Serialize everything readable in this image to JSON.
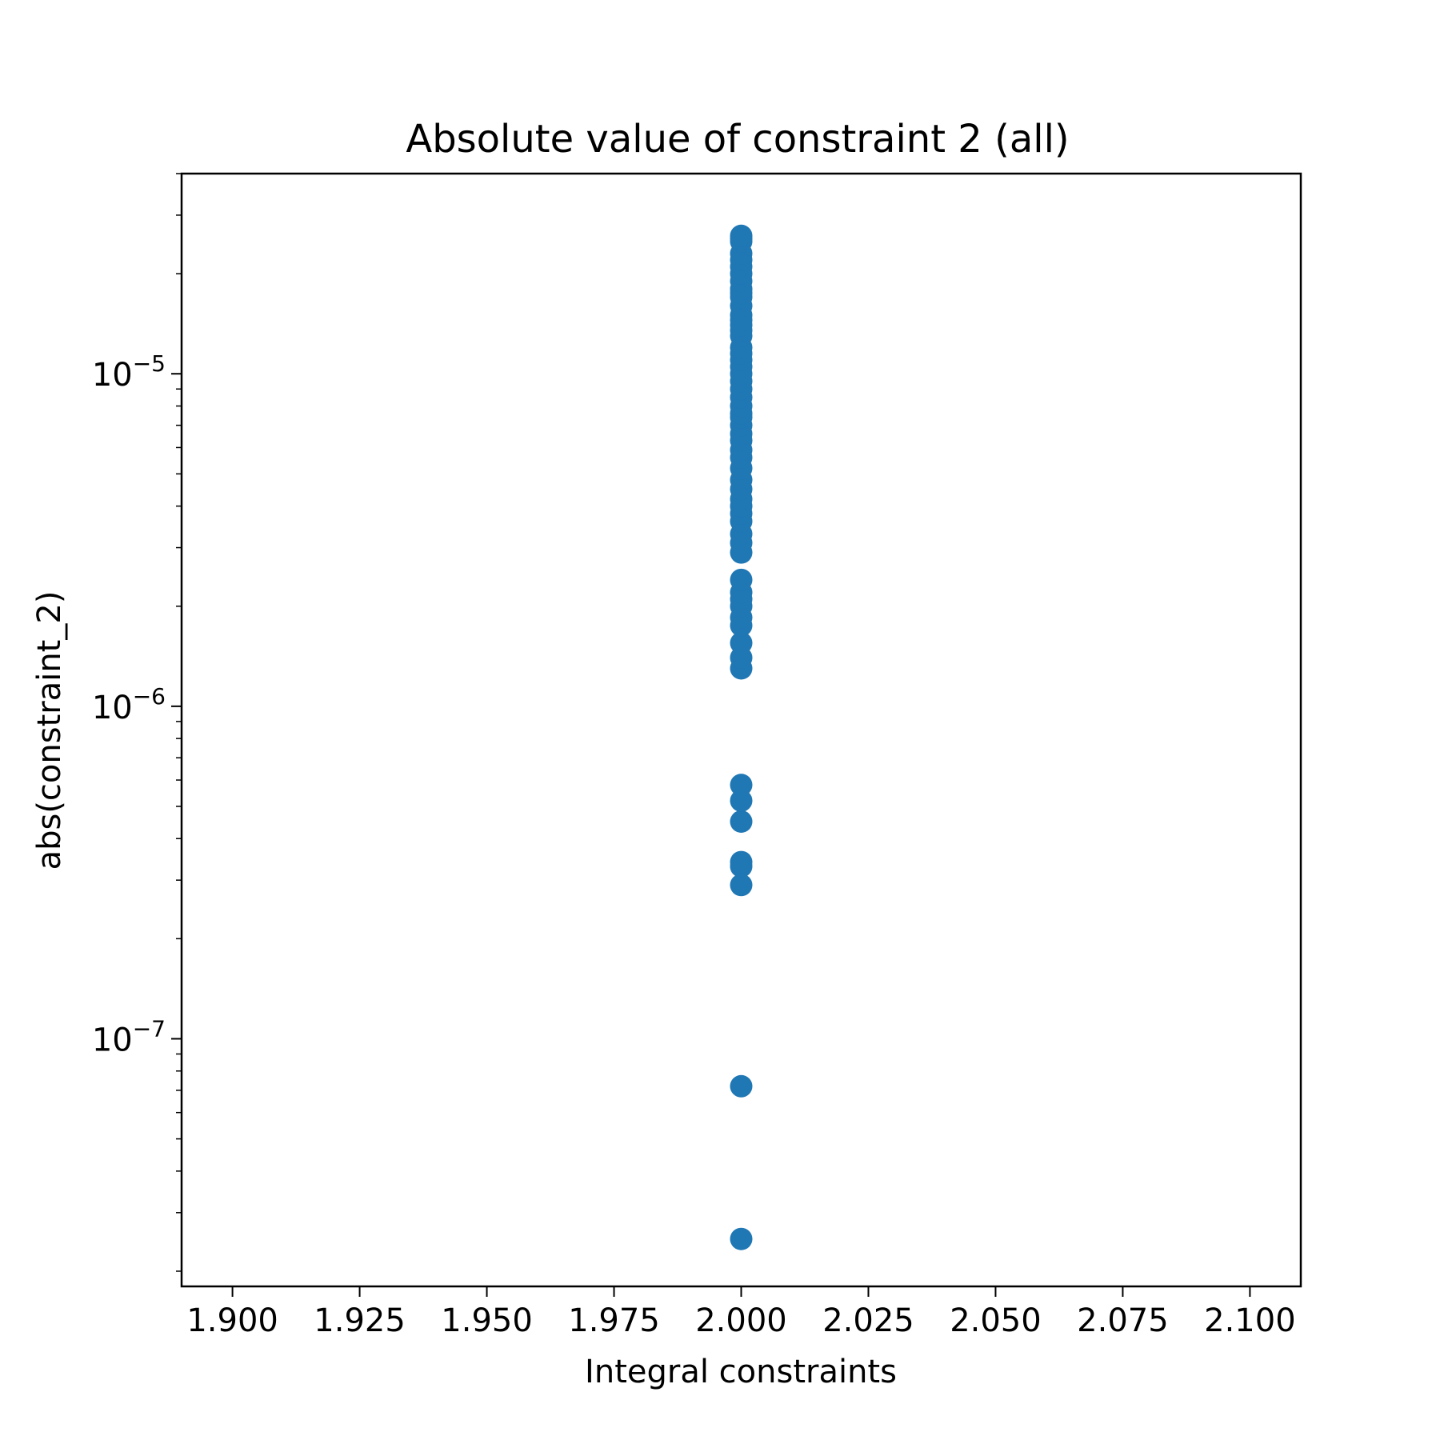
{
  "chart_data": {
    "type": "scatter",
    "title": "Absolute value of constraint 2 (all)",
    "xlabel": "Integral constraints",
    "ylabel": "abs(constraint_2)",
    "xscale": "linear",
    "yscale": "log",
    "xlim": [
      1.89,
      2.11
    ],
    "ylim": [
      1.8e-08,
      4e-05
    ],
    "x_ticks": [
      1.9,
      1.925,
      1.95,
      1.975,
      2.0,
      2.025,
      2.05,
      2.075,
      2.1
    ],
    "x_tick_labels": [
      "1.900",
      "1.925",
      "1.950",
      "1.975",
      "2.000",
      "2.025",
      "2.050",
      "2.075",
      "2.100"
    ],
    "y_ticks": [
      {
        "value": 1e-07,
        "base": "10",
        "exponent": "−7"
      },
      {
        "value": 1e-06,
        "base": "10",
        "exponent": "−6"
      },
      {
        "value": 1e-05,
        "base": "10",
        "exponent": "−5"
      }
    ],
    "grid": false,
    "marker_color": "#1f77b4",
    "series": [
      {
        "x": [
          2.0,
          2.0,
          2.0,
          2.0,
          2.0,
          2.0,
          2.0,
          2.0,
          2.0,
          2.0,
          2.0,
          2.0,
          2.0,
          2.0,
          2.0,
          2.0,
          2.0,
          2.0,
          2.0,
          2.0,
          2.0,
          2.0,
          2.0,
          2.0,
          2.0,
          2.0,
          2.0,
          2.0,
          2.0,
          2.0,
          2.0,
          2.0,
          2.0,
          2.0,
          2.0,
          2.0,
          2.0,
          2.0,
          2.0,
          2.0,
          2.0,
          2.0,
          2.0,
          2.0,
          2.0,
          2.0,
          2.0,
          2.0,
          2.0,
          2.0,
          2.0,
          2.0,
          2.0,
          2.0,
          2.0,
          2.0,
          2.0,
          2.0,
          2.0,
          2.0
        ],
        "y": [
          2.5e-08,
          7.2e-08,
          2.9e-07,
          3.3e-07,
          3.4e-07,
          4.5e-07,
          5.2e-07,
          5.8e-07,
          1.3e-06,
          1.4e-06,
          1.55e-06,
          1.75e-06,
          1.85e-06,
          2e-06,
          2.1e-06,
          2.2e-06,
          2.4e-06,
          2.9e-06,
          3.1e-06,
          3.3e-06,
          3.6e-06,
          3.8e-06,
          4e-06,
          4.2e-06,
          4.5e-06,
          4.8e-06,
          5.2e-06,
          5.6e-06,
          5.9e-06,
          6.3e-06,
          6.6e-06,
          7e-06,
          7.4e-06,
          7.6e-06,
          8e-06,
          8.5e-06,
          9e-06,
          9.5e-06,
          1e-05,
          1.05e-05,
          1.1e-05,
          1.15e-05,
          1.2e-05,
          1.3e-05,
          1.35e-05,
          1.4e-05,
          1.45e-05,
          1.5e-05,
          1.6e-05,
          1.7e-05,
          1.75e-05,
          1.8e-05,
          1.9e-05,
          2e-05,
          2.1e-05,
          2.2e-05,
          2.3e-05,
          2.5e-05,
          2.55e-05,
          2.6e-05
        ]
      }
    ]
  }
}
